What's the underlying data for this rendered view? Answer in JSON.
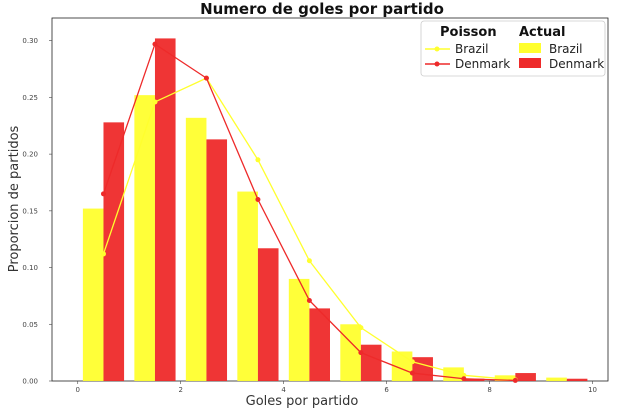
{
  "chart_data": {
    "type": "bar",
    "title": "Numero de goles por partido",
    "xlabel": "Goles por partido",
    "ylabel": "Proporcion de partidos",
    "xlim": [
      -0.5,
      10.3
    ],
    "ylim": [
      0,
      0.32
    ],
    "xticks": [
      "0",
      "2",
      "4",
      "6",
      "8",
      "10"
    ],
    "yticks": [
      "0.00",
      "0.05",
      "0.10",
      "0.15",
      "0.20",
      "0.25",
      "0.30"
    ],
    "grid": false,
    "legend": {
      "placement": "top-right",
      "poisson_title": "Poisson",
      "actual_title": "Actual",
      "poisson_entries": [
        "Brazil",
        "Denmark"
      ],
      "actual_entries": [
        "Brazil",
        "Denmark"
      ]
    },
    "colors": {
      "Brazil": "#ffff2e",
      "Denmark": "#ee2a2a"
    },
    "actual_series": [
      {
        "name": "Brazil",
        "x": [
          0.3,
          1.3,
          2.3,
          3.3,
          4.3,
          5.3,
          6.3,
          7.3,
          8.3,
          9.3
        ],
        "values": [
          0.152,
          0.252,
          0.232,
          0.167,
          0.09,
          0.05,
          0.026,
          0.012,
          0.005,
          0.003
        ]
      },
      {
        "name": "Denmark",
        "x": [
          0.7,
          1.7,
          2.7,
          3.7,
          4.7,
          5.7,
          6.7,
          7.7,
          8.7,
          9.7
        ],
        "values": [
          0.228,
          0.302,
          0.213,
          0.117,
          0.064,
          0.032,
          0.021,
          0.002,
          0.007,
          0.002
        ]
      }
    ],
    "poisson_series": [
      {
        "name": "Brazil",
        "x": [
          0.5,
          1.5,
          2.5,
          3.5,
          4.5,
          5.5,
          6.5,
          7.5,
          8.5
        ],
        "values": [
          0.112,
          0.246,
          0.267,
          0.195,
          0.106,
          0.047,
          0.017,
          0.005,
          0.001
        ]
      },
      {
        "name": "Denmark",
        "x": [
          0.5,
          1.5,
          2.5,
          3.5,
          4.5,
          5.5,
          6.5,
          7.5,
          8.5
        ],
        "values": [
          0.165,
          0.297,
          0.267,
          0.16,
          0.071,
          0.025,
          0.007,
          0.002,
          0.0005
        ]
      }
    ],
    "bar_width": 0.4
  }
}
